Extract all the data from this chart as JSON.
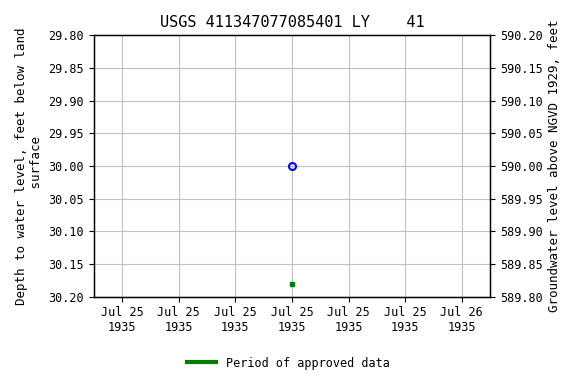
{
  "title": "USGS 411347077085401 LY    41",
  "ylabel_left": "Depth to water level, feet below land\n surface",
  "ylabel_right": "Groundwater level above NGVD 1929, feet",
  "ylim_left": [
    30.2,
    29.8
  ],
  "ylim_right": [
    589.8,
    590.2
  ],
  "yticks_left": [
    29.8,
    29.85,
    29.9,
    29.95,
    30.0,
    30.05,
    30.1,
    30.15,
    30.2
  ],
  "yticks_right": [
    589.8,
    589.85,
    589.9,
    589.95,
    590.0,
    590.05,
    590.1,
    590.15,
    590.2
  ],
  "data_x_open": 3,
  "data_y_open": 30.0,
  "data_x_filled": 3,
  "data_y_filled": 30.18,
  "open_marker_color": "#0000ff",
  "filled_marker_color": "#008000",
  "xlim": [
    -0.5,
    6.5
  ],
  "xtick_positions": [
    0,
    1,
    2,
    3,
    4,
    5,
    6
  ],
  "xtick_labels": [
    "Jul 25\n1935",
    "Jul 25\n1935",
    "Jul 25\n1935",
    "Jul 25\n1935",
    "Jul 25\n1935",
    "Jul 25\n1935",
    "Jul 26\n1935"
  ],
  "grid_color": "#c0c0c0",
  "background_color": "#ffffff",
  "legend_label": "Period of approved data",
  "legend_color": "#008000",
  "font_family": "monospace",
  "title_fontsize": 11,
  "label_fontsize": 9,
  "tick_fontsize": 8.5
}
